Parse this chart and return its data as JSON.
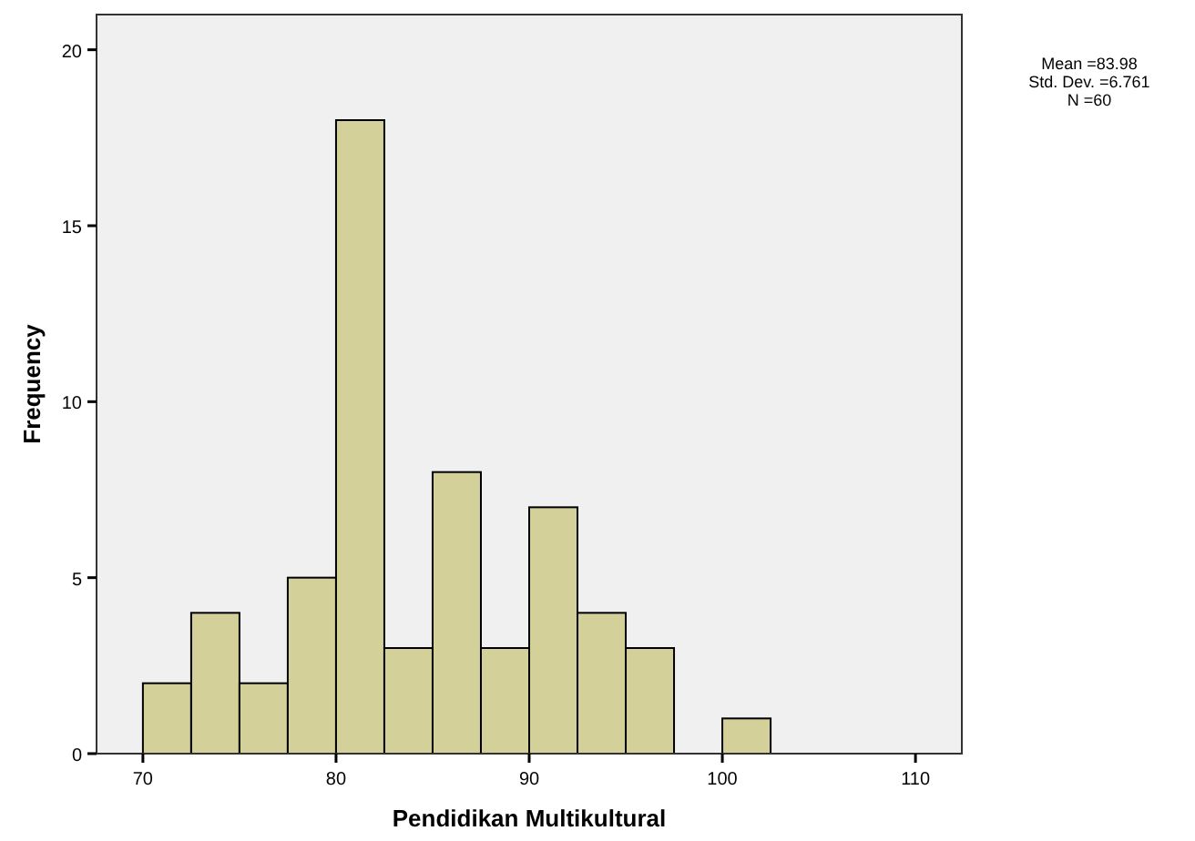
{
  "chart_data": {
    "type": "histogram",
    "xlabel": "Pendidikan Multikultural",
    "ylabel": "Frequency",
    "bins": [
      70,
      72.5,
      75,
      77.5,
      80,
      82.5,
      85,
      87.5,
      90,
      92.5,
      95,
      97.5,
      100,
      102.5
    ],
    "values": [
      2,
      4,
      2,
      5,
      18,
      3,
      8,
      3,
      7,
      4,
      3,
      0,
      1
    ],
    "color": "#d4d09a",
    "xlim": [
      67.6,
      112.4
    ],
    "xticks": [
      70,
      80,
      90,
      100,
      110
    ],
    "ylim": [
      0,
      21
    ],
    "yticks": [
      0,
      5,
      10,
      15,
      20
    ],
    "grid": false,
    "annotations": [
      "Mean =83.98",
      "Std. Dev. =6.761",
      "N =60"
    ]
  }
}
